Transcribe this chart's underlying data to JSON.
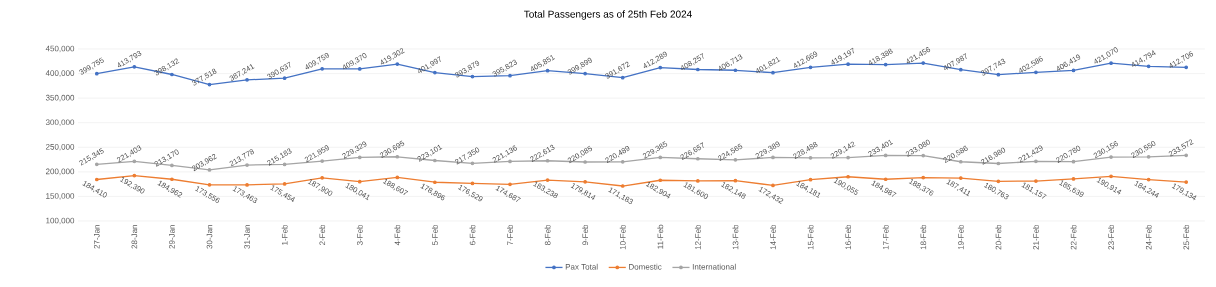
{
  "chart_data": {
    "type": "line",
    "title": "Total Passengers as of 25th Feb 2024",
    "categories": [
      "27-Jan",
      "28-Jan",
      "29-Jan",
      "30-Jan",
      "31-Jan",
      "1-Feb",
      "2-Feb",
      "3-Feb",
      "4-Feb",
      "5-Feb",
      "6-Feb",
      "7-Feb",
      "8-Feb",
      "9-Feb",
      "10-Feb",
      "11-Feb",
      "12-Feb",
      "13-Feb",
      "14-Feb",
      "15-Feb",
      "16-Feb",
      "17-Feb",
      "18-Feb",
      "19-Feb",
      "20-Feb",
      "21-Feb",
      "22-Feb",
      "23-Feb",
      "24-Feb",
      "25-Feb"
    ],
    "series": [
      {
        "name": "Pax Total",
        "color": "#4472c4",
        "values": [
          399755,
          413793,
          398132,
          377518,
          387241,
          390637,
          409759,
          409370,
          419302,
          401997,
          393879,
          395823,
          405851,
          399899,
          391672,
          412289,
          408257,
          406713,
          401821,
          412669,
          419197,
          418388,
          421456,
          407987,
          397743,
          402586,
          406419,
          421070,
          414794,
          412706
        ],
        "value_labels": [
          "399,755",
          "413,793",
          "398,132",
          "377,518",
          "387,241",
          "390,637",
          "409,759",
          "409,370",
          "419,302",
          "401,997",
          "393,879",
          "395,823",
          "405,851",
          "399,899",
          "391,672",
          "412,289",
          "408,257",
          "406,713",
          "401,821",
          "412,669",
          "419,197",
          "418,388",
          "421,456",
          "407,987",
          "397,743",
          "402,586",
          "406,419",
          "421,070",
          "414,794",
          "412,706"
        ]
      },
      {
        "name": "Domestic",
        "color": "#ed7d31",
        "values": [
          184410,
          192390,
          184962,
          173556,
          173463,
          175454,
          187900,
          180041,
          188607,
          178896,
          176529,
          174687,
          183238,
          179814,
          171183,
          182904,
          181600,
          182148,
          172432,
          184181,
          190055,
          184987,
          188376,
          187411,
          180763,
          181157,
          185639,
          190914,
          184244,
          179134
        ],
        "value_labels": [
          "184,410",
          "192,390",
          "184,962",
          "173,556",
          "173,463",
          "175,454",
          "187,900",
          "180,041",
          "188,607",
          "178,896",
          "176,529",
          "174,687",
          "183,238",
          "179,814",
          "171,183",
          "182,904",
          "181,600",
          "182,148",
          "172,432",
          "184,181",
          "190,055",
          "184,987",
          "188,376",
          "187,411",
          "180,763",
          "181,157",
          "185,639",
          "190,914",
          "184,244",
          "179,134"
        ]
      },
      {
        "name": "International",
        "color": "#a5a5a5",
        "values": [
          215345,
          221403,
          213170,
          203962,
          213778,
          215183,
          221859,
          229329,
          230695,
          223101,
          217350,
          221136,
          222613,
          220085,
          220489,
          229385,
          226657,
          224565,
          229389,
          228488,
          229142,
          233401,
          233080,
          220586,
          216980,
          221429,
          220780,
          230156,
          230550,
          233572
        ],
        "value_labels": [
          "215,345",
          "221,403",
          "213,170",
          "203,962",
          "213,778",
          "215,183",
          "221,859",
          "229,329",
          "230,695",
          "223,101",
          "217,350",
          "221,136",
          "222,613",
          "220,085",
          "220,489",
          "229,385",
          "226,657",
          "224,565",
          "229,389",
          "228,488",
          "229,142",
          "233,401",
          "233,080",
          "220,586",
          "216,980",
          "221,429",
          "220,780",
          "230,156",
          "230,550",
          "233,572"
        ]
      }
    ],
    "ylim": [
      100000,
      450000
    ],
    "yticks": [
      {
        "value": 100000,
        "label": "100,000"
      },
      {
        "value": 150000,
        "label": "150,000"
      },
      {
        "value": 200000,
        "label": "200,000"
      },
      {
        "value": 250000,
        "label": "250,000"
      },
      {
        "value": 300000,
        "label": "300,000"
      },
      {
        "value": 350000,
        "label": "350,000"
      },
      {
        "value": 400000,
        "label": "400,000"
      },
      {
        "value": 450000,
        "label": "450,000"
      }
    ],
    "grid": "y",
    "legend": "bottom",
    "marker": "circle",
    "line_style": "solid"
  }
}
